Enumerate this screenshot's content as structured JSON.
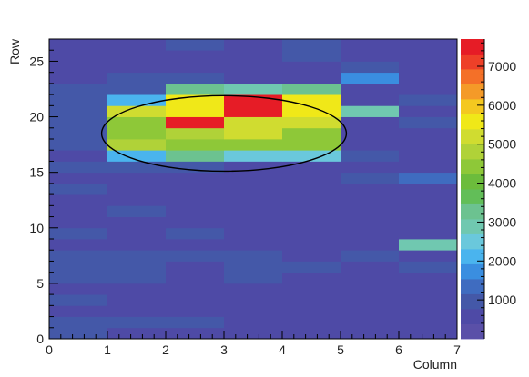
{
  "chart_data": {
    "type": "heatmap",
    "title": "",
    "xlabel": "Column",
    "ylabel": "Row",
    "xlim": [
      0,
      7
    ],
    "ylim": [
      0,
      27
    ],
    "x_ticks": [
      "0",
      "1",
      "2",
      "3",
      "4",
      "5",
      "6",
      "7"
    ],
    "y_ticks": [
      "0",
      "5",
      "10",
      "15",
      "20",
      "25"
    ],
    "x_tick_values": [
      0,
      1,
      2,
      3,
      4,
      5,
      6,
      7
    ],
    "y_tick_values": [
      0,
      5,
      10,
      15,
      20,
      25
    ],
    "colorbar": {
      "min": 0,
      "max": 7700,
      "ticks": [
        "1000",
        "2000",
        "3000",
        "4000",
        "5000",
        "6000",
        "7000"
      ],
      "tick_values": [
        1000,
        2000,
        3000,
        4000,
        5000,
        6000,
        7000
      ],
      "palette": [
        "#5a50a8",
        "#4e4aa6",
        "#4458a8",
        "#3f6cc0",
        "#3a8ee0",
        "#4ab4ee",
        "#6ac8dc",
        "#70c8b0",
        "#6cc290",
        "#62be58",
        "#6cbc3c",
        "#8ec838",
        "#b0d238",
        "#d0dc30",
        "#f0e818",
        "#f4c820",
        "#f49a28",
        "#f47028",
        "#ee4028",
        "#e61c26"
      ]
    },
    "ellipse": {
      "cx": 3.0,
      "cy": 18.5,
      "rx": 2.1,
      "ry": 3.4
    },
    "grid_rows": 27,
    "grid_cols": 7,
    "values": [
      [
        800,
        750,
        700,
        700,
        700,
        700,
        700
      ],
      [
        800,
        800,
        850,
        700,
        700,
        700,
        700
      ],
      [
        700,
        700,
        700,
        700,
        700,
        700,
        700
      ],
      [
        800,
        750,
        700,
        700,
        700,
        700,
        750
      ],
      [
        700,
        700,
        700,
        700,
        700,
        700,
        700
      ],
      [
        800,
        800,
        700,
        900,
        700,
        700,
        700
      ],
      [
        800,
        900,
        700,
        900,
        800,
        700,
        800
      ],
      [
        800,
        900,
        800,
        800,
        700,
        800,
        700
      ],
      [
        700,
        700,
        700,
        700,
        750,
        700,
        2700
      ],
      [
        900,
        700,
        800,
        700,
        700,
        700,
        750
      ],
      [
        700,
        700,
        700,
        700,
        700,
        700,
        700
      ],
      [
        700,
        800,
        700,
        700,
        700,
        700,
        700
      ],
      [
        750,
        700,
        700,
        700,
        700,
        700,
        700
      ],
      [
        800,
        700,
        700,
        700,
        750,
        700,
        700
      ],
      [
        700,
        700,
        700,
        750,
        700,
        800,
        1300
      ],
      [
        800,
        800,
        800,
        700,
        700,
        700,
        700
      ],
      [
        750,
        2300,
        3100,
        2500,
        2500,
        800,
        750
      ],
      [
        1100,
        4700,
        4600,
        4400,
        4400,
        700,
        750
      ],
      [
        1100,
        4500,
        4700,
        5200,
        4500,
        700,
        750
      ],
      [
        1100,
        4400,
        7600,
        5200,
        5200,
        700,
        800
      ],
      [
        800,
        5200,
        5400,
        7500,
        5500,
        2700,
        750
      ],
      [
        1000,
        2300,
        5600,
        7500,
        5500,
        750,
        800
      ],
      [
        900,
        850,
        3100,
        2900,
        3100,
        700,
        750
      ],
      [
        700,
        800,
        850,
        700,
        700,
        1900,
        750
      ],
      [
        700,
        700,
        750,
        750,
        750,
        800,
        700
      ],
      [
        700,
        700,
        750,
        750,
        800,
        700,
        700
      ],
      [
        700,
        700,
        800,
        750,
        1000,
        700,
        700
      ]
    ]
  }
}
